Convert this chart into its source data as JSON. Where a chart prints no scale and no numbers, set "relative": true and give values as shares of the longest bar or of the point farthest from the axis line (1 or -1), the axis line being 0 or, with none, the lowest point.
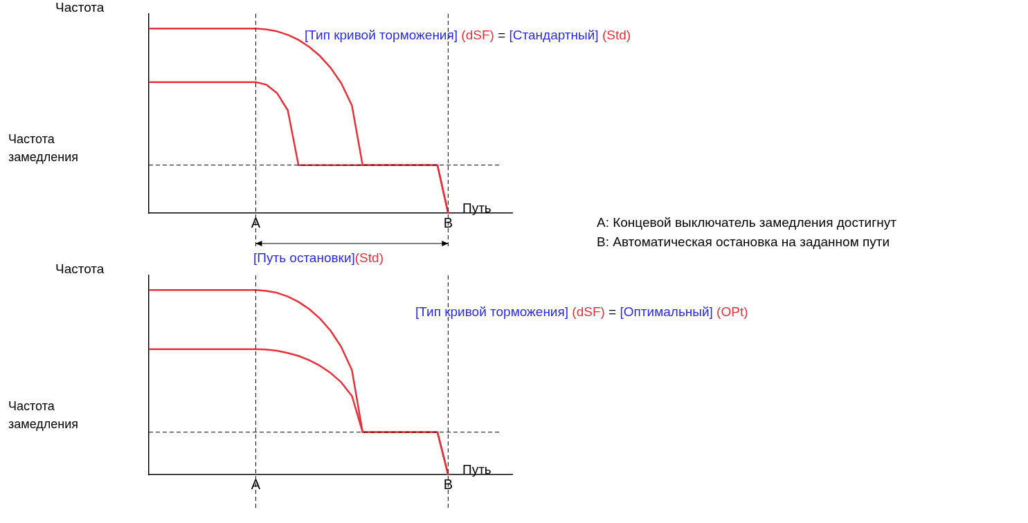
{
  "chart_data": [
    {
      "type": "line",
      "relative": true,
      "title": "[Тип кривой торможения] (dSF) = [Стандартный] (Std)",
      "ylabel": "Частота",
      "xlabel": "Путь",
      "categories": [
        null,
        null,
        null,
        null,
        null,
        null,
        null,
        null,
        null,
        null,
        "A",
        null,
        null,
        null,
        null,
        null,
        null,
        null,
        null,
        null,
        null,
        null,
        null,
        null,
        null,
        null,
        null,
        null,
        "B",
        null,
        null,
        null,
        null,
        null,
        null
      ],
      "series": [
        {
          "color": "#e8303a",
          "values": [
            1,
            1,
            1,
            1,
            1,
            1,
            1,
            1,
            1,
            1,
            1,
            0.996,
            0.985,
            0.966,
            0.939,
            0.901,
            0.852,
            0.788,
            0.704,
            0.583,
            0.26,
            0.26,
            0.26,
            0.26,
            0.26,
            0.26,
            0.26,
            0.26,
            0,
            null,
            null,
            null,
            null,
            null,
            null
          ]
        },
        {
          "color": "#e8303a",
          "values": [
            0.71,
            0.71,
            0.71,
            0.71,
            0.71,
            0.71,
            0.71,
            0.71,
            0.71,
            0.71,
            0.71,
            0.696,
            0.65,
            0.557,
            0.26,
            0.26,
            0.26,
            0.26,
            0.26,
            0.26,
            0.26,
            0.26,
            0.26,
            0.26,
            0.26,
            0.26,
            0.26,
            0.26,
            0,
            null,
            null,
            null,
            null,
            null,
            null
          ]
        }
      ],
      "ref_lines": [
        {
          "axis": "y",
          "value": 0.26,
          "label": "Частота замедления",
          "color": "#000000",
          "line_style": "dashed"
        },
        {
          "axis": "x",
          "value": "A",
          "color": "#000000",
          "line_style": "dashed"
        },
        {
          "axis": "x",
          "value": "B",
          "color": "#000000",
          "line_style": "dashed"
        }
      ],
      "annotations": [
        "[Путь остановки](Std)",
        "A: Концевой выключатель замедления достигнут",
        "B: Автоматическая остановка на заданном пути"
      ],
      "legend": false,
      "grid": false,
      "marker": "none",
      "line_style": "solid"
    },
    {
      "type": "line",
      "relative": true,
      "title": "[Тип кривой торможения] (dSF) = [Оптимальный] (OPt)",
      "ylabel": "Частота",
      "xlabel": "Путь",
      "categories": [
        null,
        null,
        null,
        null,
        null,
        null,
        null,
        null,
        null,
        null,
        "A",
        null,
        null,
        null,
        null,
        null,
        null,
        null,
        null,
        null,
        null,
        null,
        null,
        null,
        null,
        null,
        null,
        null,
        "B",
        null,
        null,
        null,
        null,
        null,
        null
      ],
      "series": [
        {
          "color": "#e8303a",
          "values": [
            1,
            1,
            1,
            1,
            1,
            1,
            1,
            1,
            1,
            1,
            1,
            0.996,
            0.985,
            0.965,
            0.936,
            0.897,
            0.846,
            0.78,
            0.692,
            0.566,
            0.23,
            0.23,
            0.23,
            0.23,
            0.23,
            0.23,
            0.23,
            0.23,
            0,
            null,
            null,
            null,
            null,
            null,
            null
          ]
        },
        {
          "color": "#e8303a",
          "values": [
            0.68,
            0.68,
            0.68,
            0.68,
            0.68,
            0.68,
            0.68,
            0.68,
            0.68,
            0.68,
            0.68,
            0.678,
            0.671,
            0.659,
            0.643,
            0.62,
            0.59,
            0.551,
            0.5,
            0.426,
            0.23,
            0.23,
            0.23,
            0.23,
            0.23,
            0.23,
            0.23,
            0.23,
            0,
            null,
            null,
            null,
            null,
            null,
            null
          ]
        }
      ],
      "ref_lines": [
        {
          "axis": "y",
          "value": 0.23,
          "label": "Частота замедления",
          "color": "#000000",
          "line_style": "dashed"
        },
        {
          "axis": "x",
          "value": "A",
          "color": "#000000",
          "line_style": "dashed"
        },
        {
          "axis": "x",
          "value": "B",
          "color": "#000000",
          "line_style": "dashed"
        }
      ],
      "legend": false,
      "grid": false,
      "marker": "none",
      "line_style": "solid"
    }
  ]
}
